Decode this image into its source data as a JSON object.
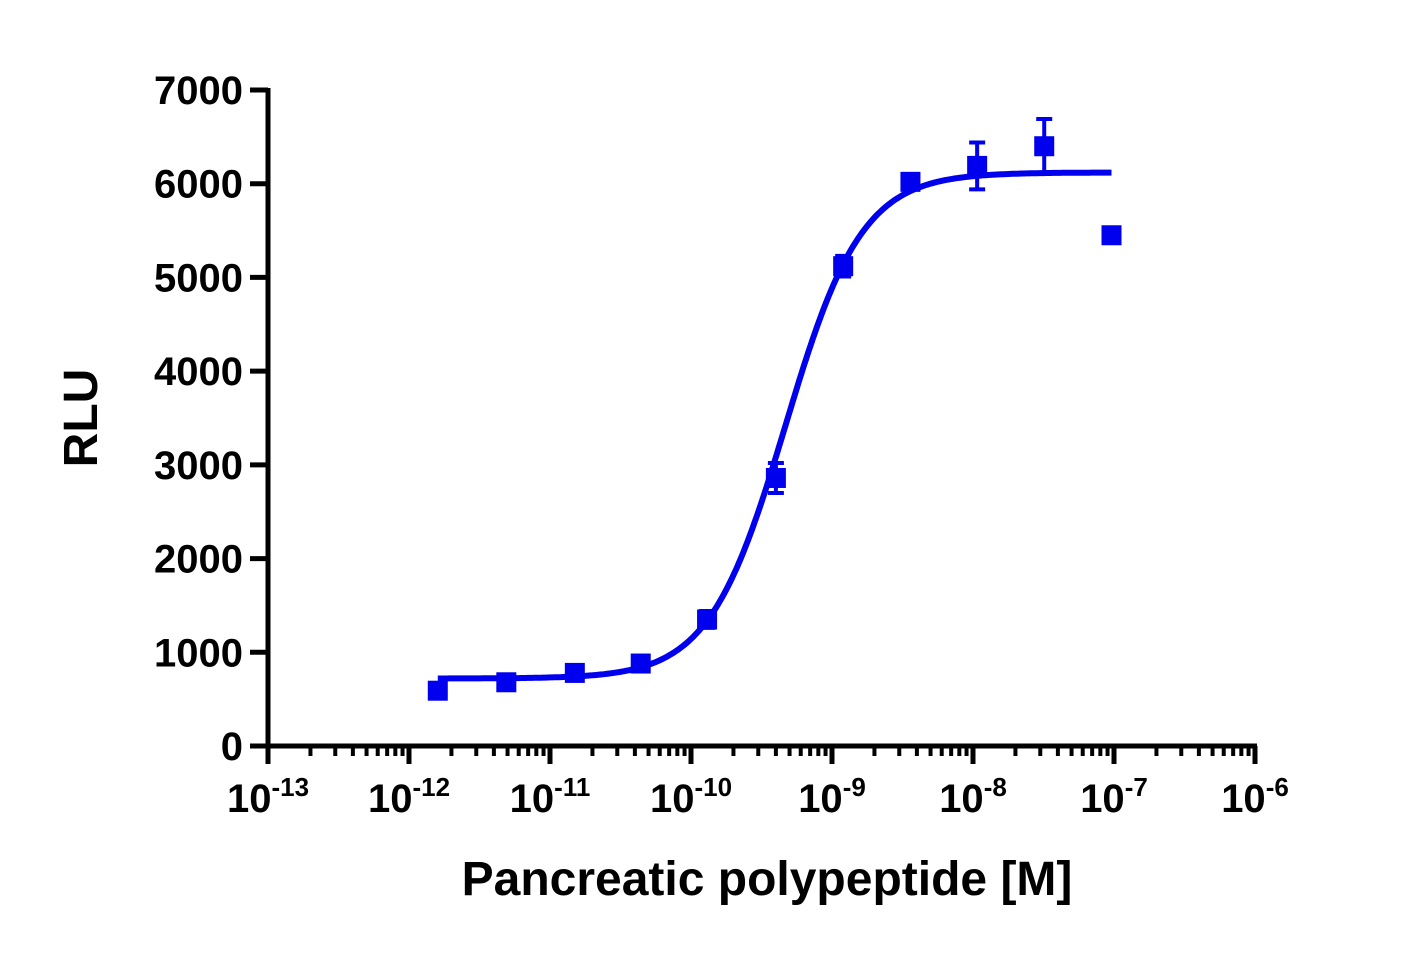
{
  "chart_data": {
    "type": "scatter",
    "title": "",
    "xlabel": "Pancreatic polypeptide [M]",
    "ylabel": "RLU",
    "x_scale": "log",
    "xlim": [
      1e-13,
      1e-06
    ],
    "ylim": [
      0,
      7000
    ],
    "x_ticks": [
      {
        "base": "10",
        "exp": "-13"
      },
      {
        "base": "10",
        "exp": "-12"
      },
      {
        "base": "10",
        "exp": "-11"
      },
      {
        "base": "10",
        "exp": "-10"
      },
      {
        "base": "10",
        "exp": "-9"
      },
      {
        "base": "10",
        "exp": "-8"
      },
      {
        "base": "10",
        "exp": "-7"
      },
      {
        "base": "10",
        "exp": "-6"
      }
    ],
    "y_ticks": [
      "0",
      "1000",
      "2000",
      "3000",
      "4000",
      "5000",
      "6000",
      "7000"
    ],
    "grid": false,
    "color": "#0000ee",
    "points": [
      {
        "x": 1.6e-12,
        "y": 590,
        "err": 30
      },
      {
        "x": 4.9e-12,
        "y": 680,
        "err": 30
      },
      {
        "x": 1.5e-11,
        "y": 780,
        "err": 40
      },
      {
        "x": 4.4e-11,
        "y": 880,
        "err": 50
      },
      {
        "x": 1.3e-10,
        "y": 1350,
        "err": 90
      },
      {
        "x": 4e-10,
        "y": 2860,
        "err": 160
      },
      {
        "x": 1.2e-09,
        "y": 5120,
        "err": 110
      },
      {
        "x": 3.6e-09,
        "y": 6020,
        "err": 50
      },
      {
        "x": 1.07e-08,
        "y": 6190,
        "err": 250
      },
      {
        "x": 3.2e-08,
        "y": 6400,
        "err": 290
      },
      {
        "x": 9.6e-08,
        "y": 5450,
        "err": 40
      }
    ],
    "fit": {
      "model": "four-parameter logistic",
      "bottom": 720,
      "top": 6120,
      "log_ec50": -9.33,
      "hill": 1.6,
      "x_range": [
        1.6e-12,
        9.6e-08
      ]
    }
  }
}
